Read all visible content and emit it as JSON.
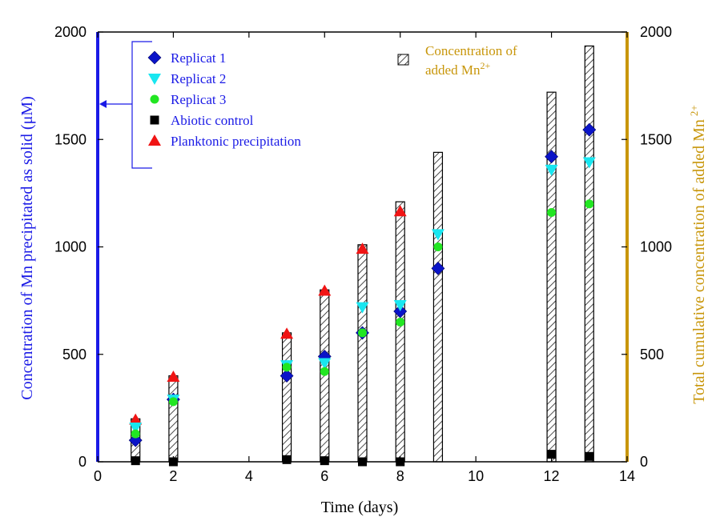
{
  "chart_data": {
    "type": "scatter",
    "xlabel": "Time (days)",
    "ylabel_left": "Concentration of Mn precipitated as solid (μM)",
    "ylabel_right_prefix": "Total cumulative concentration of added Mn",
    "ylabel_right_sup": "2+",
    "xlim": [
      0,
      14
    ],
    "ylim": [
      0,
      2000
    ],
    "x_ticks": [
      0,
      2,
      4,
      6,
      8,
      10,
      12,
      14
    ],
    "y_ticks": [
      0,
      500,
      1000,
      1500,
      2000
    ],
    "legend_placement": "top-left",
    "bars": {
      "name_line1": "Concentration of",
      "name_line2": "added Mn",
      "name_sup": "2+",
      "x": [
        1,
        2,
        5,
        6,
        7,
        8,
        9,
        12,
        13
      ],
      "values": [
        200,
        400,
        600,
        800,
        1010,
        1210,
        1440,
        1720,
        1935
      ]
    },
    "series": [
      {
        "name": "Replicat 1",
        "marker": "diamond",
        "color": "#0a14c8",
        "x": [
          1,
          2,
          5,
          6,
          7,
          8,
          9,
          12,
          13
        ],
        "values": [
          100,
          290,
          400,
          490,
          600,
          700,
          900,
          1420,
          1545
        ]
      },
      {
        "name": "Replicat 2",
        "marker": "triangle-down",
        "color": "#19e6f0",
        "x": [
          1,
          2,
          5,
          6,
          7,
          8,
          9,
          12,
          13
        ],
        "values": [
          160,
          290,
          450,
          460,
          720,
          730,
          1060,
          1360,
          1395
        ]
      },
      {
        "name": "Replicat 3",
        "marker": "circle",
        "color": "#22e622",
        "x": [
          1,
          2,
          5,
          6,
          7,
          8,
          9,
          12,
          13
        ],
        "values": [
          130,
          280,
          440,
          420,
          600,
          650,
          1000,
          1160,
          1200
        ]
      },
      {
        "name": "Abiotic control",
        "marker": "square",
        "color": "#000000",
        "x": [
          1,
          2,
          5,
          6,
          7,
          8,
          12,
          13
        ],
        "values": [
          5,
          0,
          10,
          5,
          0,
          0,
          35,
          25
        ]
      },
      {
        "name": "Planktonic precipitation",
        "marker": "triangle-up",
        "color": "#f01414",
        "x": [
          1,
          2,
          5,
          6,
          7,
          8
        ],
        "values": [
          195,
          395,
          595,
          795,
          990,
          1165
        ]
      }
    ],
    "colors": {
      "left_axis": "#1a1ae6",
      "right_axis": "#c8960a",
      "frame": "#000000"
    }
  }
}
